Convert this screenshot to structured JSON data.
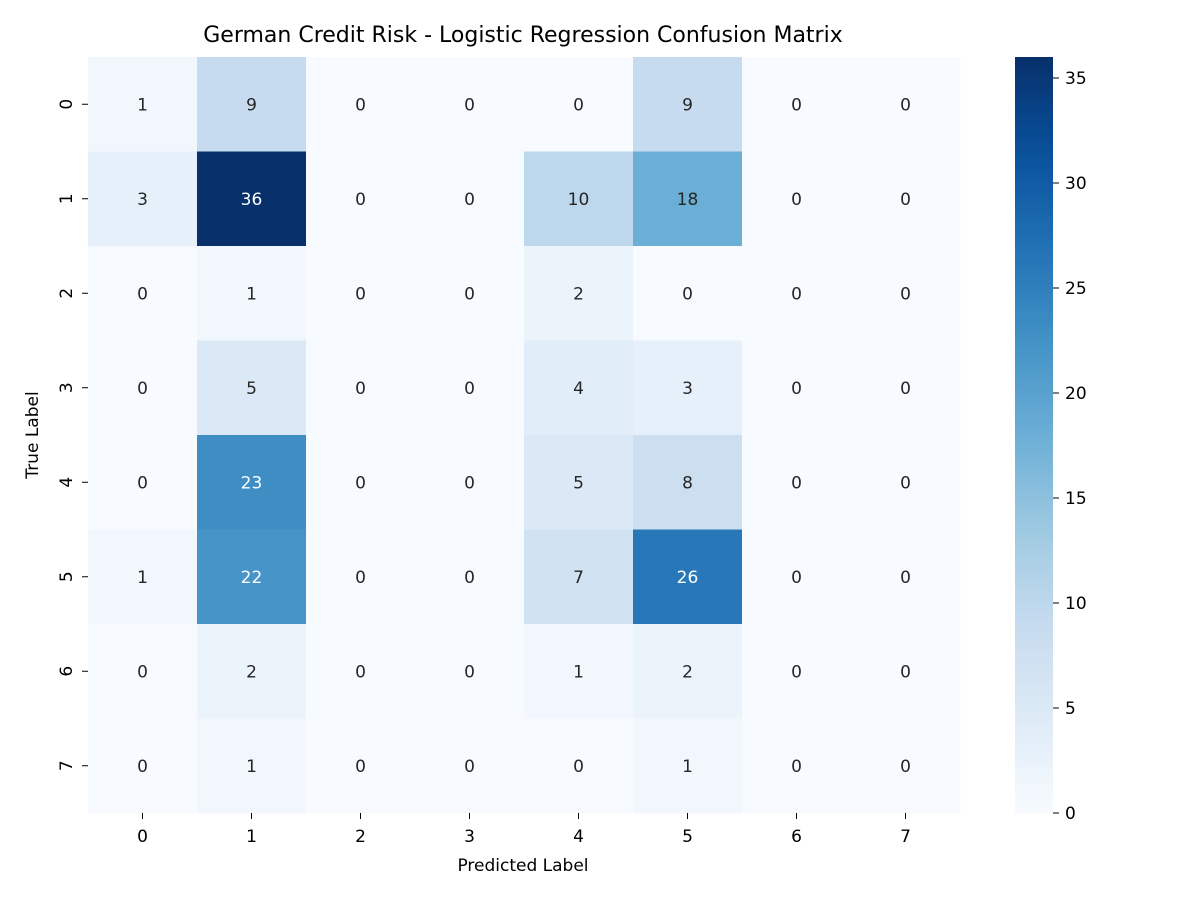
{
  "chart_data": {
    "type": "heatmap",
    "title": "German Credit Risk - Logistic Regression Confusion Matrix",
    "xlabel": "Predicted Label",
    "ylabel": "True Label",
    "x_categories": [
      "0",
      "1",
      "2",
      "3",
      "4",
      "5",
      "6",
      "7"
    ],
    "y_categories": [
      "0",
      "1",
      "2",
      "3",
      "4",
      "5",
      "6",
      "7"
    ],
    "values": [
      [
        1,
        9,
        0,
        0,
        0,
        9,
        0,
        0
      ],
      [
        3,
        36,
        0,
        0,
        10,
        18,
        0,
        0
      ],
      [
        0,
        1,
        0,
        0,
        2,
        0,
        0,
        0
      ],
      [
        0,
        5,
        0,
        0,
        4,
        3,
        0,
        0
      ],
      [
        0,
        23,
        0,
        0,
        5,
        8,
        0,
        0
      ],
      [
        1,
        22,
        0,
        0,
        7,
        26,
        0,
        0
      ],
      [
        0,
        2,
        0,
        0,
        1,
        2,
        0,
        0
      ],
      [
        0,
        1,
        0,
        0,
        0,
        1,
        0,
        0
      ]
    ],
    "colormap": "Blues",
    "color_range": [
      0,
      36
    ],
    "colorbar_ticks": [
      0,
      5,
      10,
      15,
      20,
      25,
      30,
      35
    ],
    "annotation_light_color": "#ffffff",
    "annotation_dark_color": "#262626"
  }
}
